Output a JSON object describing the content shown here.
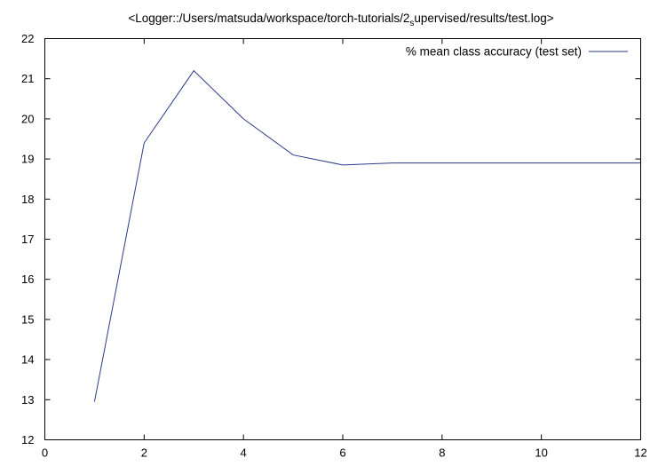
{
  "chart_data": {
    "type": "line",
    "title": {
      "main": "<Logger::/Users/matsuda/workspace/torch-tutorials/2",
      "sub": "s",
      "rest": "upervised/results/test.log>"
    },
    "xlabel": "",
    "ylabel": "",
    "xlim": [
      0,
      12
    ],
    "ylim": [
      12,
      22
    ],
    "xticks": [
      0,
      2,
      4,
      6,
      8,
      10,
      12
    ],
    "yticks": [
      12,
      13,
      14,
      15,
      16,
      17,
      18,
      19,
      20,
      21,
      22
    ],
    "grid": false,
    "legend_position": "top-right",
    "series": [
      {
        "name": "% mean class accuracy (test set)",
        "color": "#2b3a8c",
        "x": [
          1,
          2,
          3,
          4,
          5,
          6,
          7,
          8,
          9,
          10,
          11,
          12
        ],
        "y": [
          12.95,
          19.4,
          21.2,
          20.0,
          19.1,
          18.85,
          18.9,
          18.9,
          18.9,
          18.9,
          18.9,
          18.9
        ]
      }
    ]
  }
}
